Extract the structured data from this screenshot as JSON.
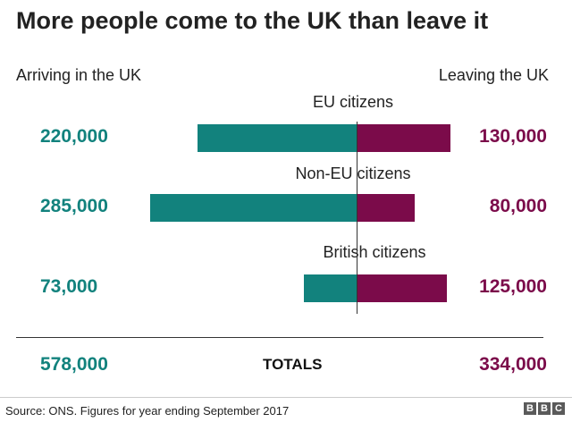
{
  "chart_data": {
    "type": "bar",
    "title": "More people come to the UK than leave it",
    "left_header": "Arriving in the UK",
    "right_header": "Leaving the UK",
    "categories": [
      "EU citizens",
      "Non-EU citizens",
      "British citizens"
    ],
    "series": [
      {
        "name": "Arriving in the UK",
        "values": [
          220000,
          285000,
          73000
        ],
        "labels": [
          "220,000",
          "285,000",
          "73,000"
        ],
        "color": "#12827d"
      },
      {
        "name": "Leaving the UK",
        "values": [
          130000,
          80000,
          125000
        ],
        "labels": [
          "130,000",
          "80,000",
          "125,000"
        ],
        "color": "#7b0b4a"
      }
    ],
    "totals": {
      "label": "TOTALS",
      "arriving": "578,000",
      "leaving": "334,000"
    },
    "colors": {
      "arriving": "#12827d",
      "leaving": "#7b0b4a"
    }
  },
  "footer": {
    "source": "Source: ONS. Figures for year ending September 2017",
    "logo_letters": [
      "B",
      "B",
      "C"
    ]
  }
}
